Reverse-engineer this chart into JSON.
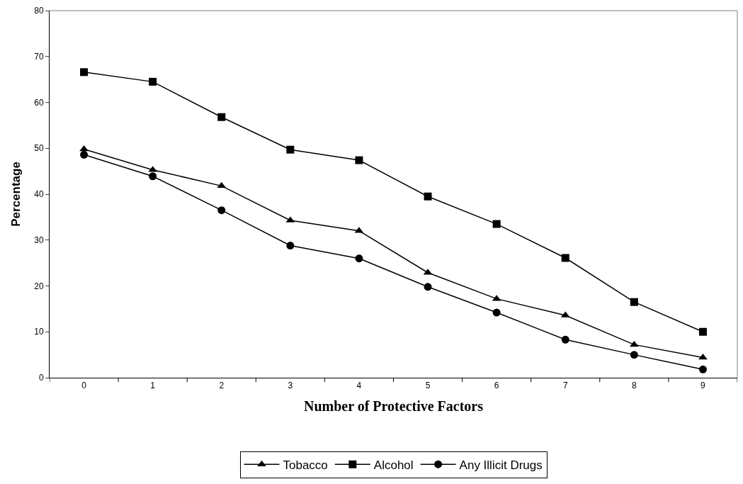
{
  "chart_data": {
    "type": "line",
    "xlabel": "Number of Protective Factors",
    "ylabel": "Percentage",
    "categories": [
      "0",
      "1",
      "2",
      "3",
      "4",
      "5",
      "6",
      "7",
      "8",
      "9"
    ],
    "series": [
      {
        "name": "Tobacco",
        "color": "#000000",
        "marker": "triangle",
        "values": [
          49.8,
          45.3,
          41.8,
          34.3,
          32.0,
          22.9,
          17.2,
          13.6,
          7.2,
          4.4
        ]
      },
      {
        "name": "Alcohol",
        "color": "#000000",
        "marker": "square",
        "values": [
          66.6,
          64.5,
          56.8,
          49.7,
          47.4,
          39.5,
          33.5,
          26.1,
          16.5,
          10.0
        ]
      },
      {
        "name": "Any Illicit Drugs",
        "color": "#000000",
        "marker": "circle",
        "values": [
          48.6,
          43.9,
          36.5,
          28.8,
          26.0,
          19.8,
          14.2,
          8.3,
          5.0,
          1.8
        ]
      }
    ],
    "ylim": [
      0,
      80
    ],
    "yticks": [
      0,
      10,
      20,
      30,
      40,
      50,
      60,
      70,
      80
    ],
    "legend": "bottom",
    "line_style": "solid"
  }
}
